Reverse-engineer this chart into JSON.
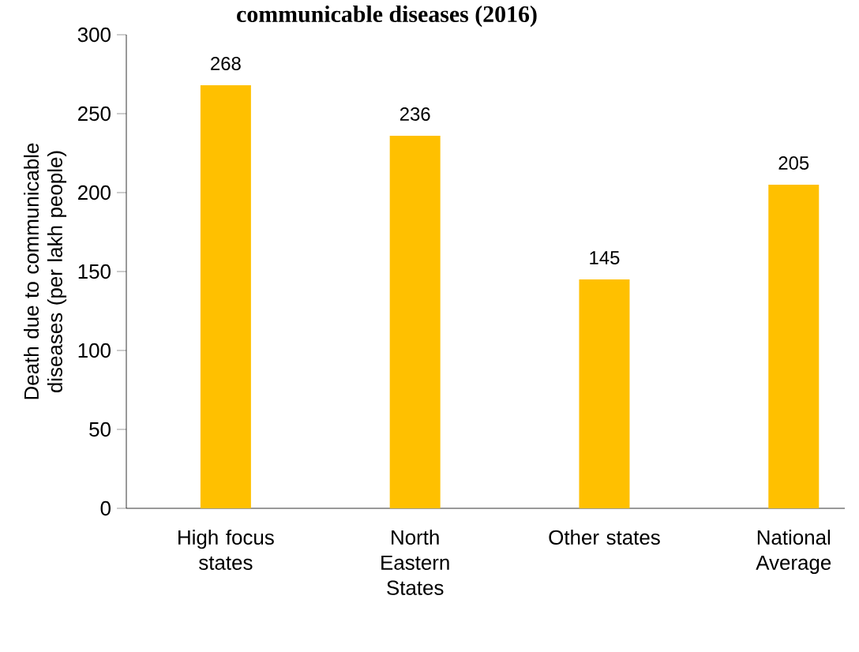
{
  "chart_data": {
    "type": "bar",
    "title": "communicable diseases (2016)",
    "ylabel": "Death due to communicable diseases (per lakh people)",
    "categories": [
      "High focus states",
      "North Eastern States",
      "Other states",
      "National Average"
    ],
    "values": [
      268,
      236,
      145,
      205
    ],
    "color": "#ffc000",
    "ylim": [
      0,
      300
    ],
    "yticks": [
      0,
      50,
      100,
      150,
      200,
      250,
      300
    ],
    "grid": false,
    "data_labels": true
  }
}
